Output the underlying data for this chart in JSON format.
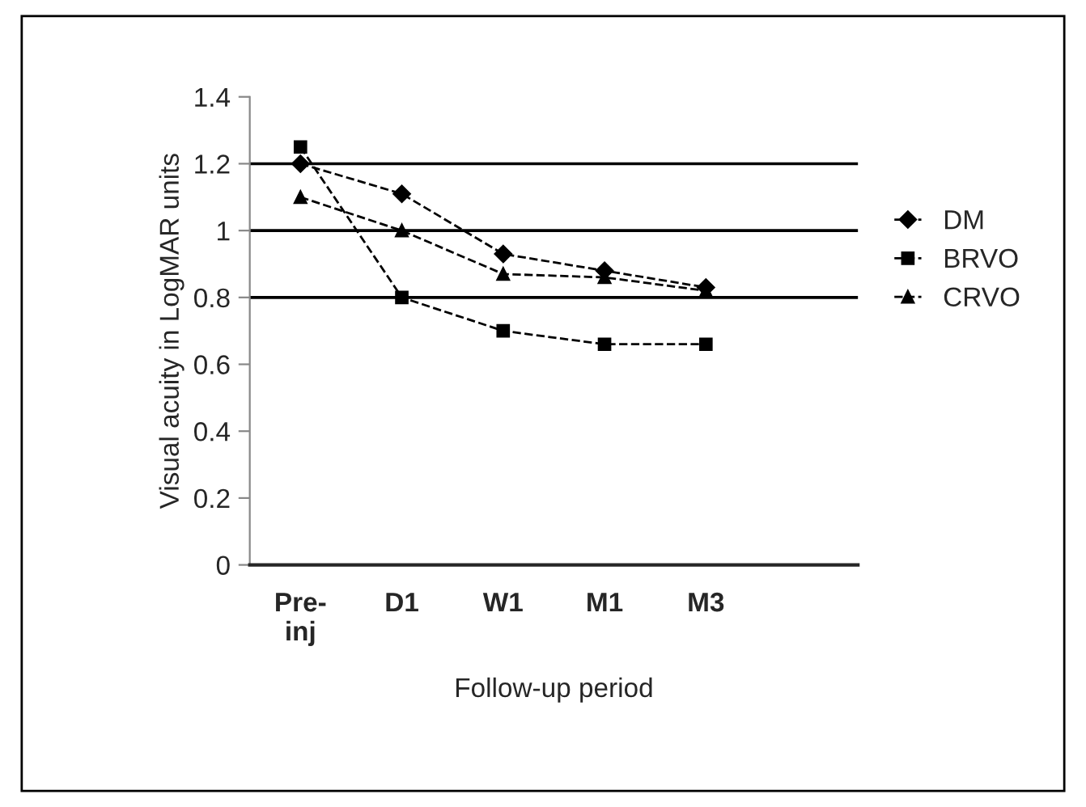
{
  "chart_data": {
    "type": "line",
    "xlabel": "Follow-up period",
    "ylabel": "Visual acuity in LogMAR units",
    "categories": [
      "Pre-\ninj",
      "D1",
      "W1",
      "M1",
      "M3",
      null
    ],
    "series": [
      {
        "name": "DM",
        "color": "#000000",
        "marker": "diamond",
        "values": [
          1.2,
          1.11,
          0.93,
          0.88,
          0.83,
          null
        ]
      },
      {
        "name": "BRVO",
        "color": "#000000",
        "marker": "square",
        "values": [
          1.25,
          0.8,
          0.7,
          0.66,
          0.66,
          null
        ]
      },
      {
        "name": "CRVO",
        "color": "#000000",
        "marker": "triangle",
        "values": [
          1.1,
          1.0,
          0.87,
          0.86,
          0.82,
          null
        ]
      }
    ],
    "ylim": [
      0,
      1.4
    ],
    "yticks": [
      0,
      0.2,
      0.4,
      0.6,
      0.8,
      1,
      1.2,
      1.4
    ],
    "ref_lines": [
      {
        "axis": "y",
        "value": 0.8,
        "color": "#000000"
      },
      {
        "axis": "y",
        "value": 1,
        "color": "#000000"
      },
      {
        "axis": "y",
        "value": 1.2,
        "color": "#000000"
      }
    ],
    "grid": false,
    "legend": "right",
    "line_style": "dashed"
  }
}
